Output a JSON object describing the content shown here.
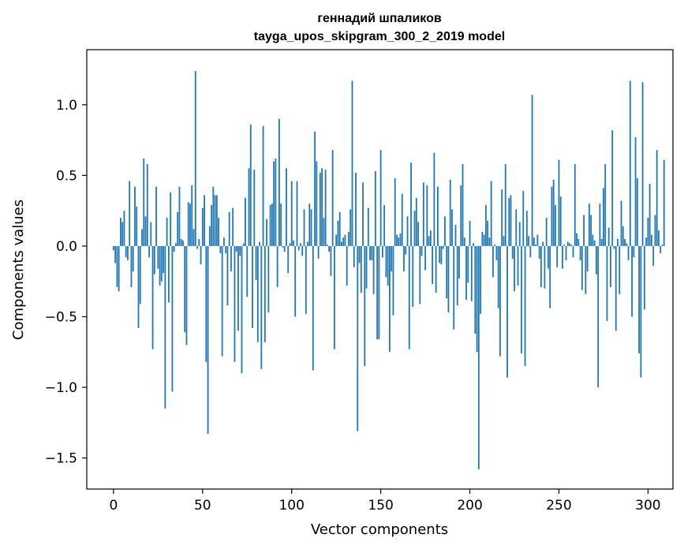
{
  "chart_data": {
    "type": "bar",
    "title_line1": "геннадий шпаликов",
    "title_line2": "tayga_upos_skipgram_300_2_2019 model",
    "xlabel": "Vector components",
    "ylabel": "Components values",
    "xlim": [
      -15,
      314
    ],
    "ylim": [
      -1.72,
      1.39
    ],
    "xticks": [
      0,
      50,
      100,
      150,
      200,
      250,
      300
    ],
    "xtick_labels": [
      "0",
      "50",
      "100",
      "150",
      "200",
      "250",
      "300"
    ],
    "yticks": [
      1.0,
      0.5,
      0.0,
      -0.5,
      -1.0,
      -1.5
    ],
    "ytick_labels": [
      "1.0",
      "0.5",
      "0.0",
      "−0.5",
      "−1.0",
      "−1.5"
    ],
    "grid": false,
    "bar_color": "#1f77b4",
    "values": [
      -0.03,
      -0.12,
      -0.29,
      -0.32,
      0.2,
      0.17,
      0.25,
      -0.08,
      -0.1,
      0.46,
      -0.29,
      -0.18,
      0.42,
      0.28,
      -0.58,
      -0.41,
      0.12,
      0.62,
      0.21,
      0.58,
      -0.08,
      0.17,
      -0.73,
      -0.2,
      0.42,
      -0.16,
      -0.28,
      -0.25,
      -0.19,
      -1.15,
      0.2,
      -0.4,
      0.38,
      -1.03,
      -0.04,
      0.02,
      0.24,
      0.42,
      0.05,
      0.04,
      -0.61,
      -0.7,
      0.31,
      0.3,
      0.43,
      0.12,
      1.24,
      -0.02,
      0.05,
      -0.13,
      0.27,
      0.36,
      -0.82,
      -1.33,
      0.14,
      0.29,
      0.42,
      0.36,
      0.36,
      0.2,
      -0.05,
      -0.78,
      0.06,
      -0.05,
      -0.42,
      0.24,
      -0.18,
      0.27,
      -0.82,
      -0.04,
      -0.6,
      -0.07,
      -0.9,
      0.02,
      0.34,
      -0.36,
      0.55,
      0.86,
      -0.58,
      0.54,
      -0.24,
      -0.68,
      0.03,
      -0.87,
      0.85,
      -0.68,
      0.19,
      -0.47,
      0.29,
      0.3,
      0.6,
      0.62,
      -0.29,
      0.9,
      0.3,
      -0.01,
      -0.04,
      0.55,
      -0.19,
      0.02,
      0.46,
      0.04,
      -0.5,
      0.46,
      -0.03,
      0.02,
      -0.07,
      0.26,
      -0.48,
      0.03,
      0.3,
      0.26,
      -0.88,
      0.81,
      0.6,
      -0.09,
      0.52,
      0.55,
      0.2,
      0.54,
      0.01,
      -0.04,
      -0.21,
      0.68,
      -0.73,
      0.08,
      0.18,
      0.24,
      0.03,
      0.06,
      0.08,
      -0.28,
      0.1,
      0.26,
      1.17,
      -0.15,
      0.52,
      -1.31,
      -0.12,
      -0.33,
      0.45,
      -0.85,
      -0.3,
      0.27,
      -0.1,
      -0.1,
      -0.34,
      0.53,
      -0.66,
      -0.66,
      0.68,
      -0.08,
      0.29,
      -0.22,
      -0.28,
      -0.75,
      -0.18,
      -0.49,
      0.48,
      0.08,
      0.06,
      0.09,
      0.37,
      -0.18,
      -0.06,
      0.21,
      -0.73,
      0.59,
      -0.43,
      0.25,
      0.34,
      0.17,
      -0.41,
      -0.07,
      0.45,
      -0.17,
      0.43,
      0.07,
      0.11,
      -0.27,
      0.66,
      -0.33,
      0.42,
      -0.12,
      -0.13,
      -0.02,
      0.21,
      -0.37,
      -0.47,
      0.47,
      0.26,
      -0.59,
      0.15,
      -0.42,
      -0.23,
      0.43,
      0.58,
      0.06,
      -0.38,
      -0.26,
      0.18,
      -0.39,
      0.02,
      -0.62,
      -0.75,
      -1.58,
      -0.48,
      0.1,
      0.08,
      0.29,
      0.18,
      0.06,
      0.46,
      -0.22,
      0.01,
      -0.1,
      -0.44,
      -0.78,
      0.4,
      0.07,
      0.58,
      -0.93,
      0.34,
      0.36,
      -0.09,
      -0.32,
      0.26,
      -0.28,
      0.17,
      -0.76,
      0.39,
      -0.85,
      0.25,
      0.07,
      -0.08,
      1.07,
      0.06,
      0.01,
      0.08,
      -0.09,
      -0.29,
      0.03,
      -0.3,
      0.2,
      -0.16,
      -0.44,
      0.42,
      0.47,
      0.29,
      -0.15,
      0.61,
      0.35,
      -0.16,
      0.01,
      -0.1,
      0.03,
      0.02,
      0.01,
      -0.08,
      0.58,
      0.09,
      0.05,
      -0.1,
      -0.31,
      0.22,
      -0.34,
      -0.18,
      0.3,
      0.22,
      0.08,
      0.04,
      -0.2,
      -1.0,
      0.3,
      0.05,
      0.41,
      0.58,
      -0.53,
      0.13,
      -0.29,
      0.82,
      -0.02,
      -0.6,
      0.05,
      -0.34,
      0.32,
      0.14,
      0.05,
      0.02,
      -0.1,
      1.17,
      -0.5,
      -0.08,
      0.77,
      0.48,
      -0.76,
      -0.93,
      1.16,
      -0.45,
      0.06,
      0.2,
      0.44,
      0.08,
      -0.14,
      0.22,
      0.68,
      0.11,
      -0.05,
      0.01,
      0.61
    ]
  }
}
